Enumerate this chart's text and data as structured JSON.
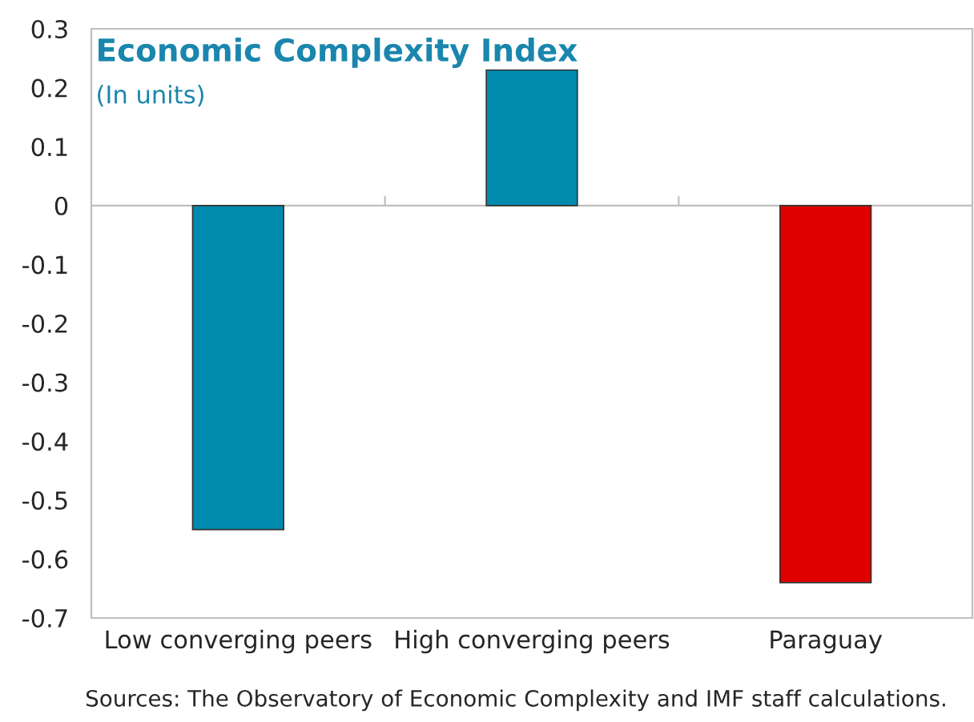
{
  "chart_data": {
    "type": "bar",
    "title": "Economic Complexity Index",
    "subtitle": "(In units)",
    "categories": [
      "Low converging peers",
      "High converging peers",
      "Paraguay"
    ],
    "values": [
      -0.55,
      0.23,
      -0.64
    ],
    "colors": [
      "#008baf",
      "#008baf",
      "#e00000"
    ],
    "ylim": [
      -0.7,
      0.3
    ],
    "yticks": [
      -0.7,
      -0.6,
      -0.5,
      -0.4,
      -0.3,
      -0.2,
      -0.1,
      0,
      0.1,
      0.2,
      0.3
    ],
    "annotations": [
      "Sources: The Observatory of Economic Complexity and IMF staff calculations."
    ]
  }
}
